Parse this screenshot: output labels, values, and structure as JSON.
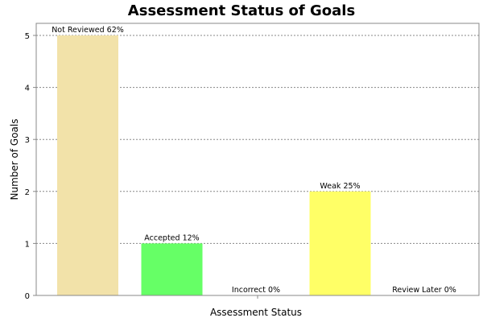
{
  "chart_data": {
    "type": "bar",
    "title": "Assessment Status of Goals",
    "xlabel": "Assessment Status",
    "ylabel": "Number of Goals",
    "categories": [
      "Not Reviewed",
      "Accepted",
      "Incorrect",
      "Weak",
      "Review Later"
    ],
    "values": [
      5,
      1,
      0,
      2,
      0
    ],
    "data_labels": [
      "Not Reviewed 62%",
      "Accepted 12%",
      "Incorrect 0%",
      "Weak 25%",
      "Review Later 0%"
    ],
    "colors": [
      "#f2e2a9",
      "#66ff66",
      "#ff6666",
      "#ffff66",
      "#66ffff"
    ],
    "ylim": [
      0,
      5
    ],
    "yticks": [
      0,
      1,
      2,
      3,
      4,
      5
    ],
    "grid": true,
    "legend": "none",
    "show_x_tick_labels": false
  }
}
